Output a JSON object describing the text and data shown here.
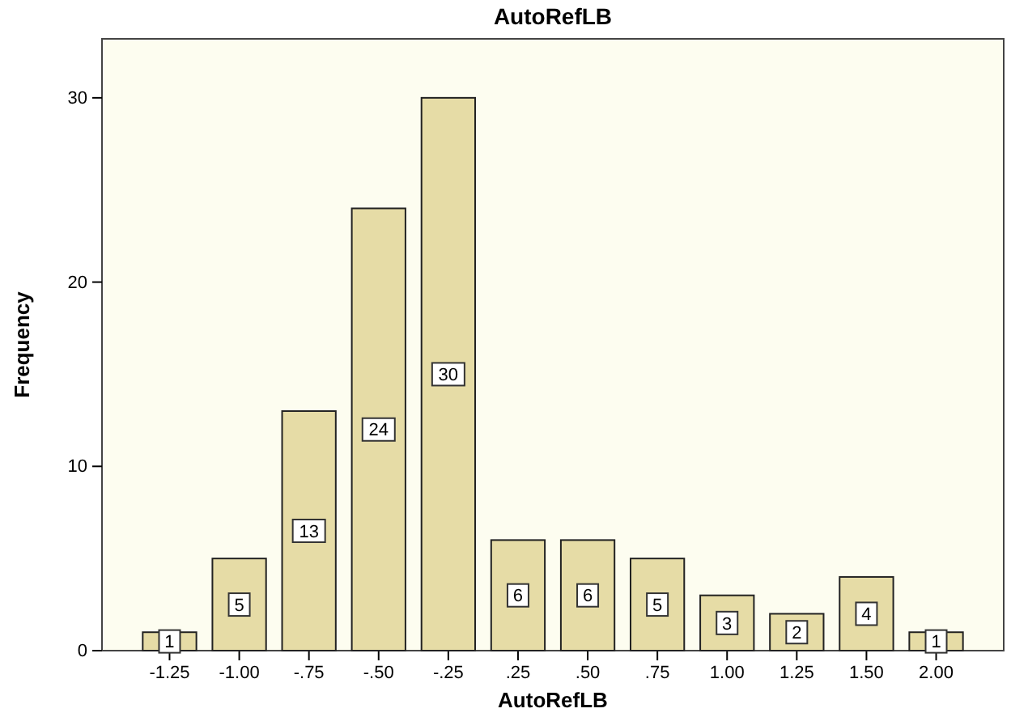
{
  "chart_data": {
    "type": "bar",
    "title": "AutoRefLB",
    "xlabel": "AutoRefLB",
    "ylabel": "Frequency",
    "categories": [
      "-1.25",
      "-1.00",
      "-.75",
      "-.50",
      "-.25",
      ".25",
      ".50",
      ".75",
      "1.00",
      "1.25",
      "1.50",
      "2.00"
    ],
    "values": [
      1,
      5,
      13,
      24,
      30,
      6,
      6,
      5,
      3,
      2,
      4,
      1
    ],
    "color": "#e6dca6",
    "ylim": [
      0,
      33.2
    ],
    "yticks": [
      0,
      10,
      20,
      30
    ],
    "grid": false,
    "data_labels": true
  }
}
